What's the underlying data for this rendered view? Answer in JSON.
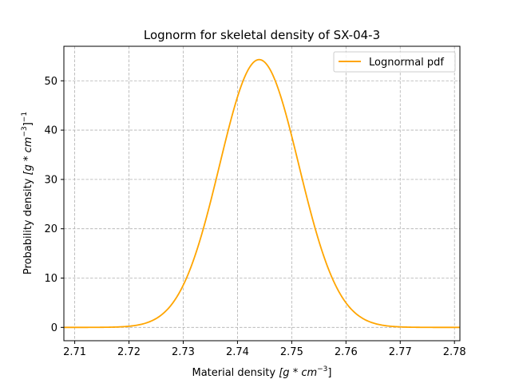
{
  "chart_data": {
    "type": "line",
    "title": "Lognorm for skeletal density of SX-04-3",
    "xlabel_prefix": "Material density ",
    "xlabel_unit": "[g * cm",
    "xlabel_exp": "−3",
    "xlabel_close": "]",
    "ylabel_prefix": "Probability density ",
    "ylabel_unit": "[g * cm",
    "ylabel_exp1": "−3",
    "ylabel_close": "]",
    "ylabel_exp2": "−1",
    "xlim": [
      2.708,
      2.781
    ],
    "ylim": [
      -2.7,
      57
    ],
    "xticks": [
      2.71,
      2.72,
      2.73,
      2.74,
      2.75,
      2.76,
      2.77,
      2.78
    ],
    "xtick_labels": [
      "2.71",
      "2.72",
      "2.73",
      "2.74",
      "2.75",
      "2.76",
      "2.77",
      "2.78"
    ],
    "yticks": [
      0,
      10,
      20,
      30,
      40,
      50
    ],
    "ytick_labels": [
      "0",
      "10",
      "20",
      "30",
      "40",
      "50"
    ],
    "grid": true,
    "legend_position": "top-right",
    "series": [
      {
        "name": "Lognormal pdf",
        "color": "#ffa500",
        "distribution": "lognormal",
        "peak_x": 2.744,
        "peak_y": 54.3,
        "x_min": 2.708,
        "x_max": 2.781
      }
    ]
  }
}
